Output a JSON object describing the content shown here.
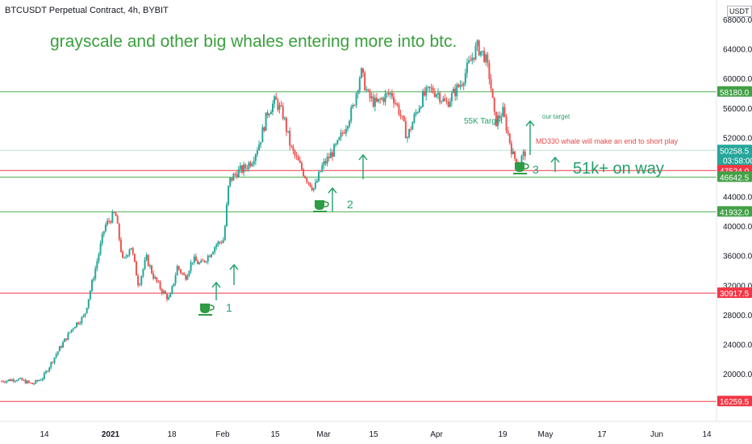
{
  "header": {
    "title": "BTCUSDT Perpetual Contract, 4h, BYBIT",
    "currency_button": "USDT"
  },
  "annotations": {
    "headline": "grayscale and other big whales entering more into btc.",
    "target_55k": "55K Target",
    "our_target": "our target",
    "md330": "MD330 whale will make an end to short play",
    "on_way": "51k+ on way",
    "marker_1": "1",
    "marker_2": "2",
    "marker_3": "3"
  },
  "colors": {
    "up": "#26a69a",
    "down": "#ef5350",
    "green_line": "#4caf50",
    "red_line": "#f23645",
    "annotation_green": "#22a06b",
    "current_price_bg": "#26a69a"
  },
  "chart_data": {
    "type": "candlestick",
    "ylim": [
      14000,
      69000
    ],
    "y_ticks": [
      "68000.0",
      "64000.0",
      "60000.0",
      "56000.0",
      "52000.0",
      "44000.0",
      "40000.0",
      "36000.0",
      "32000.0",
      "28000.0",
      "24000.0",
      "20000.0"
    ],
    "x_ticks": [
      "14",
      "2021",
      "18",
      "Feb",
      "15",
      "Mar",
      "15",
      "Apr",
      "19",
      "May",
      "17",
      "Jun",
      "14"
    ],
    "price_path": [
      [
        0,
        19000
      ],
      [
        6,
        19300
      ],
      [
        12,
        18600
      ],
      [
        16,
        19500
      ],
      [
        22,
        23200
      ],
      [
        28,
        26500
      ],
      [
        32,
        27800
      ],
      [
        36,
        33800
      ],
      [
        40,
        40000
      ],
      [
        44,
        41800
      ],
      [
        47,
        35000
      ],
      [
        50,
        37500
      ],
      [
        53,
        32000
      ],
      [
        56,
        35700
      ],
      [
        59,
        33000
      ],
      [
        62,
        31300
      ],
      [
        65,
        30000
      ],
      [
        68,
        34500
      ],
      [
        71,
        33000
      ],
      [
        74,
        35500
      ],
      [
        77,
        34800
      ],
      [
        80,
        36000
      ],
      [
        83,
        37500
      ],
      [
        86,
        38200
      ],
      [
        88,
        46000
      ],
      [
        91,
        47300
      ],
      [
        94,
        47800
      ],
      [
        97,
        49000
      ],
      [
        100,
        51500
      ],
      [
        103,
        55500
      ],
      [
        106,
        57000
      ],
      [
        109,
        55000
      ],
      [
        112,
        50500
      ],
      [
        115,
        48500
      ],
      [
        118,
        46500
      ],
      [
        121,
        45000
      ],
      [
        124,
        48000
      ],
      [
        127,
        49500
      ],
      [
        130,
        51000
      ],
      [
        133,
        53500
      ],
      [
        136,
        56000
      ],
      [
        139,
        61000
      ],
      [
        142,
        57500
      ],
      [
        145,
        56500
      ],
      [
        148,
        57500
      ],
      [
        151,
        58000
      ],
      [
        154,
        55500
      ],
      [
        157,
        52000
      ],
      [
        160,
        55000
      ],
      [
        163,
        57500
      ],
      [
        166,
        58500
      ],
      [
        169,
        58000
      ],
      [
        172,
        56500
      ],
      [
        175,
        58000
      ],
      [
        178,
        59500
      ],
      [
        181,
        62000
      ],
      [
        184,
        64300
      ],
      [
        187,
        63000
      ],
      [
        189,
        60000
      ],
      [
        191,
        54000
      ],
      [
        194,
        55500
      ],
      [
        196,
        52500
      ],
      [
        198,
        49500
      ],
      [
        200,
        48500
      ],
      [
        203,
        50258.5
      ]
    ],
    "horizontal_lines": [
      {
        "price": 58180.0,
        "label": "58180.0",
        "color": "green"
      },
      {
        "price": 50258.5,
        "label": "50258.5",
        "color": "current"
      },
      {
        "price": 47524.0,
        "label": "47524.0",
        "color": "red"
      },
      {
        "price": 46642.5,
        "label": "46642.5",
        "color": "green"
      },
      {
        "price": 41932.0,
        "label": "41932.0",
        "color": "green"
      },
      {
        "price": 30917.5,
        "label": "30917.5",
        "color": "red"
      },
      {
        "price": 16259.5,
        "label": "16259.5",
        "color": "red"
      }
    ],
    "countdown": "03:58:00"
  }
}
